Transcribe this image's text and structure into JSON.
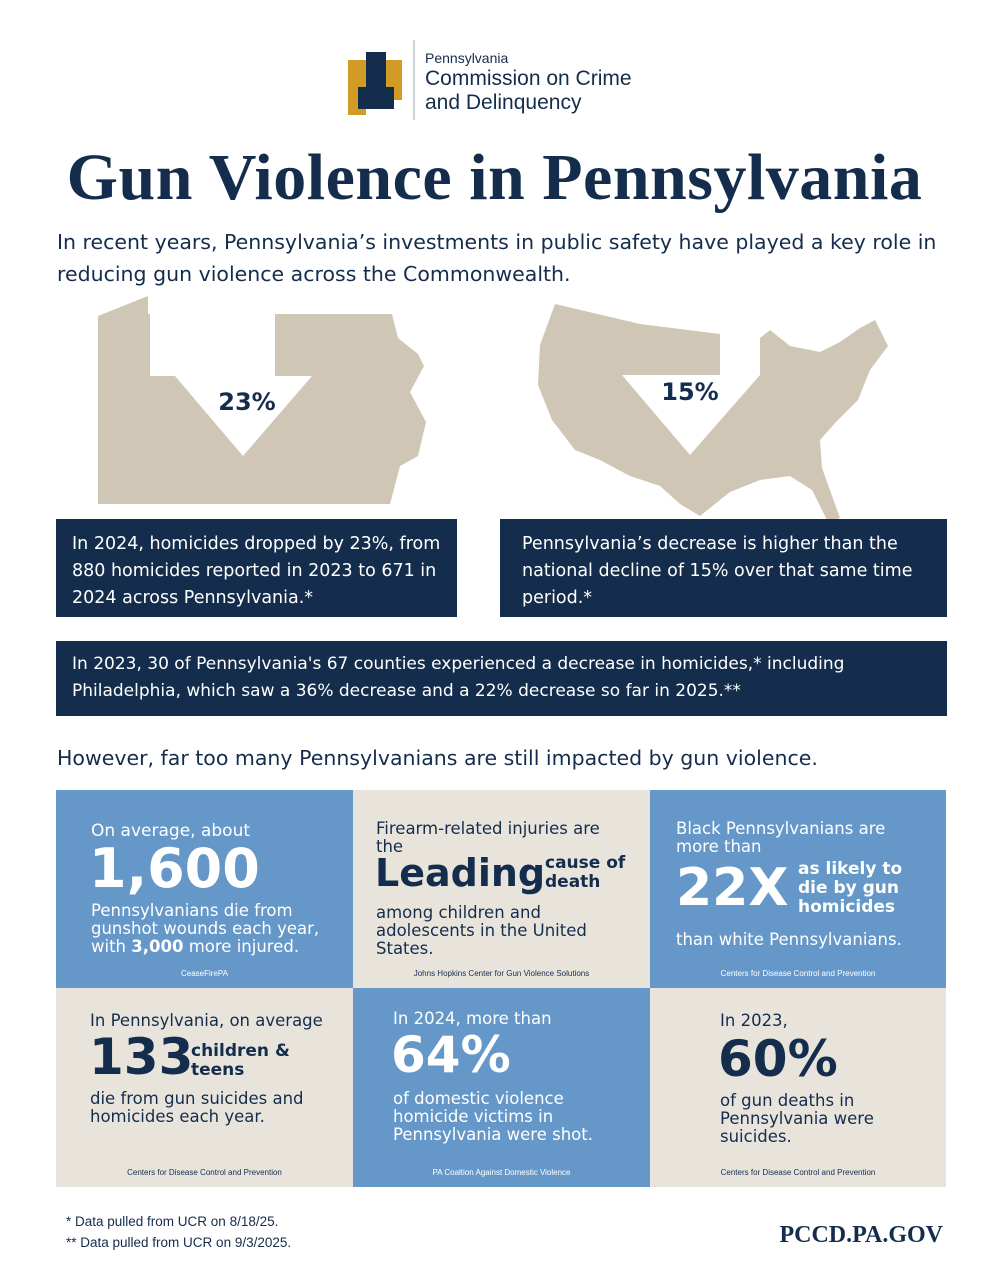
{
  "header": {
    "org_line1": "Pennsylvania",
    "org_line2": "Commission on Crime",
    "org_line3": "and Delinquency"
  },
  "title": "Gun Violence in Pennsylvania",
  "intro": "In recent years, Pennsylvania’s investments in public safety have played a key role in reducing gun violence across the Commonwealth.",
  "maps": [
    {
      "stat": "23%",
      "text": "In 2024, homicides dropped by 23%, from 880 homicides reported in 2023 to 671 in 2024 across Pennsylvania.*"
    },
    {
      "stat": "15%",
      "text": "Pennsylvania’s decrease is higher than the national decline of 15% over that same time period.*"
    }
  ],
  "counties_note": "In 2023, 30 of Pennsylvania's 67 counties experienced a decrease in homicides,* including Philadelphia, which saw a 36% decrease and a 22% decrease so far in 2025.**",
  "subheading": "However, far too many Pennsylvanians are still impacted by gun violence.",
  "cards": [
    {
      "lead": "On average, about",
      "big": "1,600",
      "body": "Pennsylvanians die from gunshot wounds each year, with",
      "highlight": "3,000",
      "body_end": "more injured.",
      "source": "CeaseFirePA"
    },
    {
      "lead": "Firearm-related injuries are the",
      "big": "Leading",
      "side": "cause of death",
      "body": "among children and adolescents in the United States.",
      "source": "Johns Hopkins Center for Gun Violence Solutions"
    },
    {
      "lead": "Black Pennsylvanians are more than",
      "big": "22X",
      "side": "as likely to die by gun homicides",
      "body": "than white Pennsylvanians.",
      "source": "Centers for Disease Control and Prevention"
    },
    {
      "lead": "In Pennsylvania, on average",
      "big": "133",
      "side": "children & teens",
      "body": "die from gun suicides and homicides each year.",
      "source": "Centers for Disease Control and Prevention"
    },
    {
      "lead": "In 2024, more than",
      "big": "64%",
      "body": "of domestic violence homicide victims in Pennsylvania were shot.",
      "source": "PA Coaltion Against Domestic Violence"
    },
    {
      "lead": "In 2023,",
      "big": "60%",
      "body": "of gun deaths in Pennsylvania were suicides.",
      "source": "Centers for Disease Control and Prevention"
    }
  ],
  "footer": {
    "notes": [
      "* Data pulled from UCR on 8/18/25.",
      "** Data pulled from UCR on 9/3/2025."
    ],
    "url": "PCCD.PA.GOV"
  }
}
